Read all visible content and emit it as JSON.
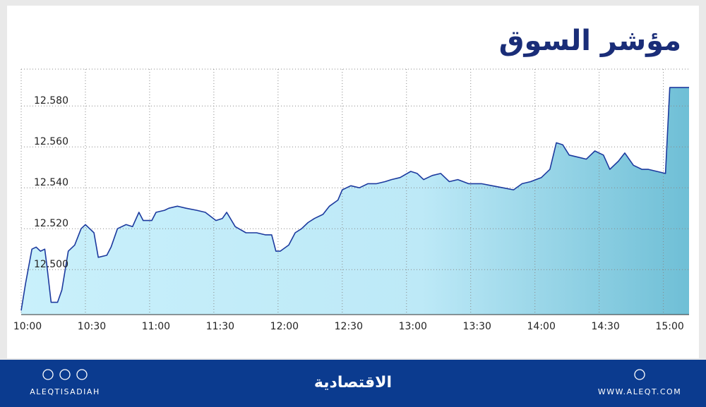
{
  "chart_data": {
    "type": "area",
    "title": "مؤشر السوق",
    "x": [
      "10:00",
      "10:02",
      "10:05",
      "10:07",
      "10:09",
      "10:11",
      "10:12",
      "10:14",
      "10:17",
      "10:19",
      "10:22",
      "10:25",
      "10:28",
      "10:30",
      "10:34",
      "10:36",
      "10:40",
      "10:42",
      "10:45",
      "10:49",
      "10:52",
      "10:55",
      "10:57",
      "11:01",
      "11:03",
      "11:07",
      "11:09",
      "11:13",
      "11:17",
      "11:22",
      "11:26",
      "11:31",
      "11:34",
      "11:36",
      "11:40",
      "11:45",
      "11:50",
      "11:54",
      "11:57",
      "11:59",
      "12:01",
      "12:05",
      "12:08",
      "12:11",
      "12:14",
      "12:17",
      "12:21",
      "12:24",
      "12:28",
      "12:30",
      "12:34",
      "12:38",
      "12:42",
      "12:46",
      "12:50",
      "12:53",
      "12:57",
      "13:02",
      "13:05",
      "13:08",
      "13:12",
      "13:16",
      "13:20",
      "13:24",
      "13:29",
      "13:35",
      "13:40",
      "13:45",
      "13:50",
      "13:54",
      "13:58",
      "14:03",
      "14:07",
      "14:10",
      "14:13",
      "14:16",
      "14:20",
      "14:24",
      "14:28",
      "14:32",
      "14:35",
      "14:39",
      "14:42",
      "14:46",
      "14:50",
      "14:53",
      "14:57",
      "15:01",
      "15:03",
      "15:12"
    ],
    "values": [
      12.48,
      12.493,
      12.51,
      12.511,
      12.509,
      12.51,
      12.502,
      12.484,
      12.484,
      12.49,
      12.509,
      12.512,
      12.52,
      12.522,
      12.518,
      12.506,
      12.507,
      12.511,
      12.52,
      12.522,
      12.521,
      12.528,
      12.524,
      12.524,
      12.528,
      12.529,
      12.53,
      12.531,
      12.53,
      12.529,
      12.528,
      12.524,
      12.525,
      12.528,
      12.521,
      12.518,
      12.518,
      12.517,
      12.517,
      12.509,
      12.509,
      12.512,
      12.518,
      12.52,
      12.523,
      12.525,
      12.527,
      12.531,
      12.534,
      12.539,
      12.541,
      12.54,
      12.542,
      12.542,
      12.543,
      12.544,
      12.545,
      12.548,
      12.547,
      12.544,
      12.546,
      12.547,
      12.543,
      12.544,
      12.542,
      12.542,
      12.541,
      12.54,
      12.539,
      12.542,
      12.543,
      12.545,
      12.549,
      12.562,
      12.561,
      12.556,
      12.555,
      12.554,
      12.558,
      12.556,
      12.549,
      12.553,
      12.557,
      12.551,
      12.549,
      12.549,
      12.548,
      12.547,
      12.589,
      12.589
    ],
    "color": "#1c3a9e",
    "xlim": [
      "10:00",
      "15:12"
    ],
    "xticks": [
      "10:00",
      "10:30",
      "11:00",
      "11:30",
      "12:00",
      "12:30",
      "13:00",
      "13:30",
      "14:00",
      "14:30",
      "15:00"
    ],
    "ylim": [
      12.478,
      12.598
    ],
    "yticks": [
      {
        "value": 12.5,
        "label": "12.500"
      },
      {
        "value": 12.52,
        "label": "12.520"
      },
      {
        "value": 12.54,
        "label": "12.540"
      },
      {
        "value": 12.56,
        "label": "12.560"
      },
      {
        "value": 12.58,
        "label": "12.580"
      }
    ],
    "grid": true
  },
  "footer": {
    "left": "ALEQTISADIAH",
    "center": "الاقتصادية",
    "right": "WWW.ALEQT.COM"
  }
}
